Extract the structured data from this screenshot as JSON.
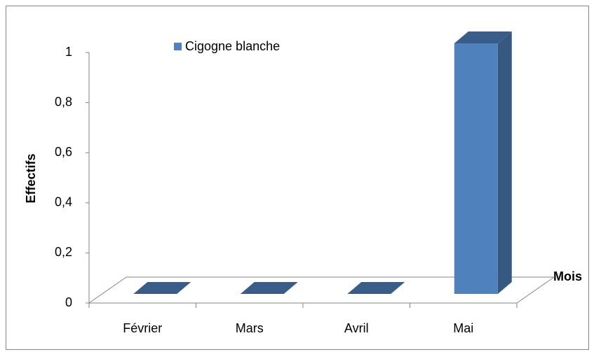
{
  "chart_data": {
    "type": "bar3d",
    "categories": [
      "Février",
      "Mars",
      "Avril",
      "Mai"
    ],
    "series": [
      {
        "name": "Cigogne blanche",
        "color": "#4f81bd",
        "values": [
          0,
          0,
          0,
          1
        ]
      }
    ],
    "ylim": [
      0,
      1
    ],
    "yticks": [
      0,
      {
        "value": 0.2,
        "label": "0,2"
      },
      {
        "value": 0.4,
        "label": "0,4"
      },
      {
        "value": 0.6,
        "label": "0,6"
      },
      {
        "value": 0.8,
        "label": "0,8"
      },
      1
    ],
    "y_label": "Effectifs",
    "x_label": "Mois",
    "legend": "top"
  }
}
